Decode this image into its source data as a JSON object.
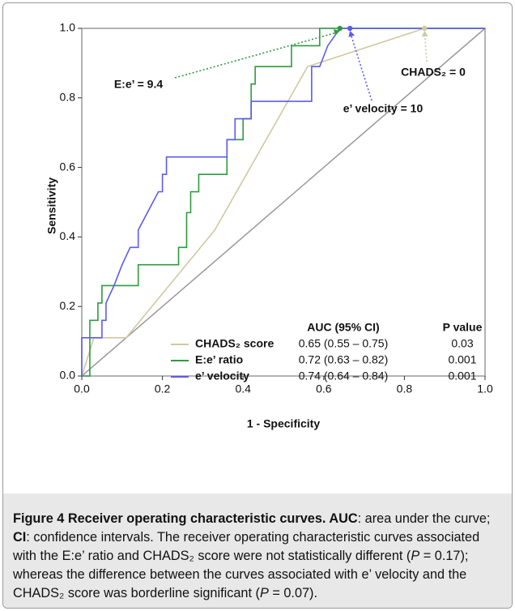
{
  "chart_data": {
    "type": "line",
    "xlabel": "1 - Specificity",
    "ylabel": "Sensitivity",
    "xlim": [
      0,
      1
    ],
    "ylim": [
      0,
      1
    ],
    "xticks": [
      {
        "value": 0,
        "label": "0.0"
      },
      0.2,
      0.4,
      0.6,
      0.8,
      {
        "value": 1,
        "label": "1.0"
      }
    ],
    "yticks": [
      {
        "value": 0,
        "label": "0.0"
      },
      0.2,
      0.4,
      0.6,
      0.8,
      {
        "value": 1,
        "label": "1.0"
      }
    ],
    "grid": false,
    "reference_color": "#999999",
    "legend_headers": [
      "AUC (95% CI)",
      "P value"
    ],
    "series": [
      {
        "name": "CHADS₂ score",
        "color": "#cfc9a0",
        "auc": "0.65 (0.55 – 0.75)",
        "p_value": 0.03,
        "x": [
          0,
          0.03,
          0.11,
          0.33,
          0.56,
          0.85,
          1
        ],
        "values": [
          0,
          0.11,
          0.11,
          0.42,
          0.89,
          1,
          1
        ]
      },
      {
        "name": "E:e’ ratio",
        "color": "#2e9b3e",
        "auc": "0.72 (0.63 – 0.82)",
        "p_value": 0.001,
        "x": [
          0,
          0.02,
          0.02,
          0.04,
          0.04,
          0.05,
          0.05,
          0.14,
          0.14,
          0.24,
          0.24,
          0.26,
          0.26,
          0.27,
          0.27,
          0.29,
          0.29,
          0.36,
          0.36,
          0.4,
          0.4,
          0.42,
          0.42,
          0.43,
          0.43,
          0.52,
          0.52,
          0.59,
          0.59,
          0.64,
          1
        ],
        "values": [
          0,
          0,
          0.16,
          0.16,
          0.21,
          0.21,
          0.26,
          0.26,
          0.32,
          0.32,
          0.37,
          0.37,
          0.47,
          0.47,
          0.53,
          0.53,
          0.58,
          0.58,
          0.68,
          0.68,
          0.74,
          0.74,
          0.84,
          0.84,
          0.89,
          0.89,
          0.95,
          0.95,
          1,
          1,
          1
        ]
      },
      {
        "name": "e’ velocity",
        "color": "#5b5bf0",
        "auc": "0.74 (0.64 – 0.84)",
        "p_value": 0.001,
        "x": [
          0,
          0,
          0.05,
          0.05,
          0.06,
          0.06,
          0.08,
          0.1,
          0.12,
          0.14,
          0.14,
          0.19,
          0.2,
          0.2,
          0.21,
          0.21,
          0.36,
          0.36,
          0.38,
          0.38,
          0.42,
          0.42,
          0.57,
          0.57,
          0.59,
          0.61,
          0.64,
          0.665,
          1
        ],
        "values": [
          0,
          0.11,
          0.11,
          0.16,
          0.16,
          0.21,
          0.26,
          0.32,
          0.37,
          0.37,
          0.42,
          0.53,
          0.53,
          0.58,
          0.58,
          0.63,
          0.63,
          0.68,
          0.68,
          0.74,
          0.74,
          0.79,
          0.79,
          0.89,
          0.89,
          0.95,
          1,
          1,
          1
        ]
      }
    ],
    "annotations": [
      {
        "text": "E:e’ = 9.4",
        "x": 0.64,
        "y": 1,
        "color": "#2e9b3e"
      },
      {
        "text": "e’ velocity = 10",
        "x": 0.665,
        "y": 1,
        "color": "#5b5bf0"
      },
      {
        "text": "CHADS₂ = 0",
        "x": 0.85,
        "y": 1,
        "color": "#cfc9a0"
      }
    ]
  },
  "caption": {
    "segments": [
      {
        "text": "Figure 4 Receiver operating characteristic curves.",
        "bold": true
      },
      {
        "text": " AUC",
        "bold": true
      },
      {
        "text": ": area under the curve; "
      },
      {
        "text": "CI",
        "bold": true
      },
      {
        "text": ": confidence intervals. The receiver operating characteristic curves associated with the E:e’ ratio and CHADS₂ score were not statistically different ("
      },
      {
        "text": "P",
        "italic": true
      },
      {
        "text": " = 0.17); whereas the difference between the curves associated with e’ velocity and the CHADS₂ score was borderline significant ("
      },
      {
        "text": "P",
        "italic": true
      },
      {
        "text": " = 0.07)."
      }
    ]
  }
}
